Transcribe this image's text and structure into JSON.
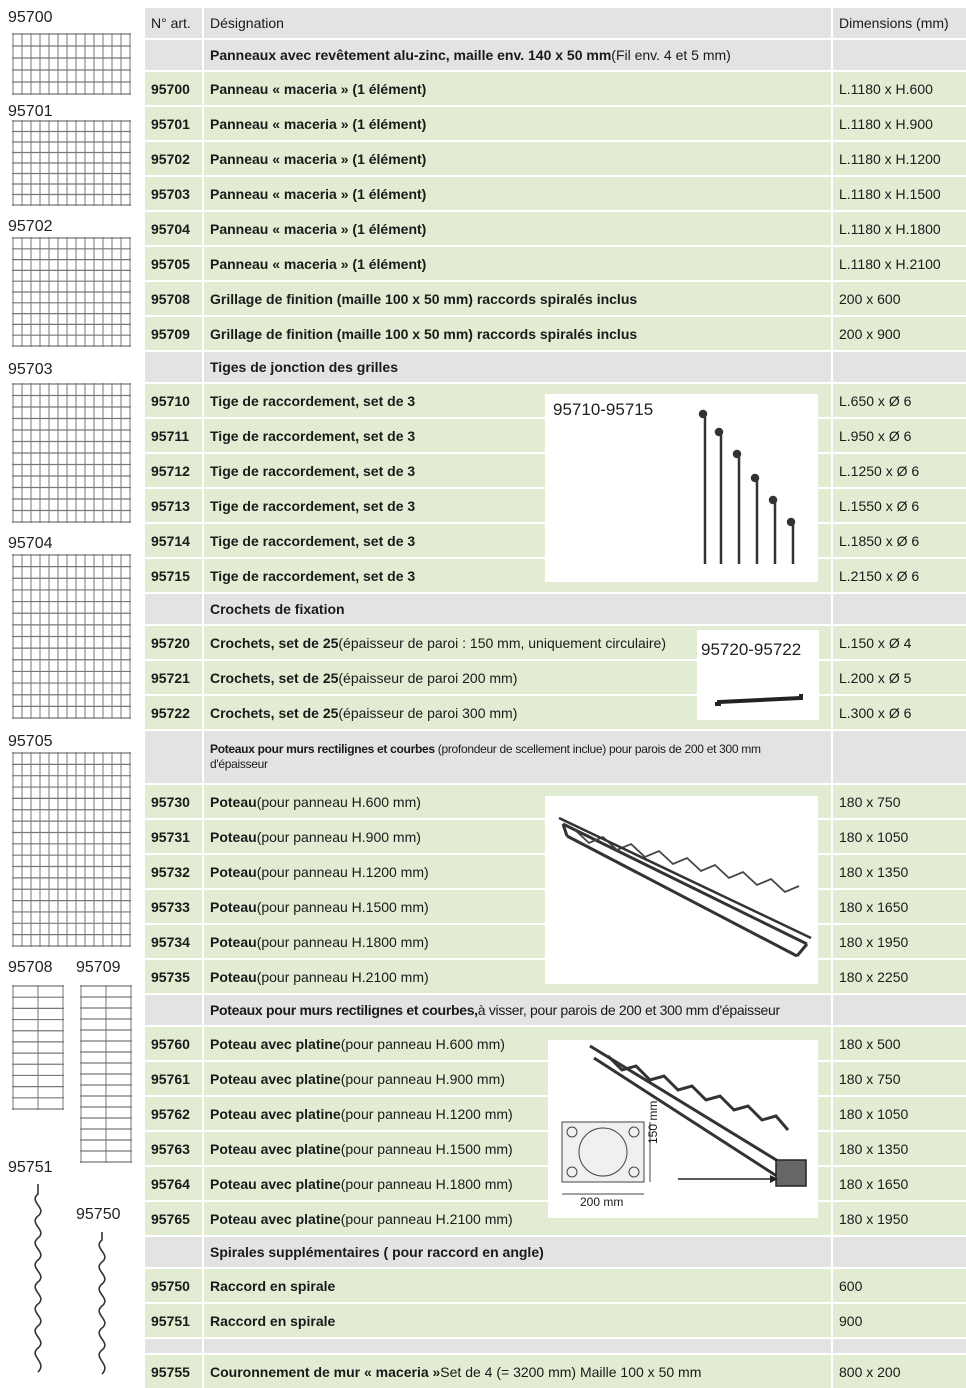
{
  "thumbs": {
    "t95700": "95700",
    "t95701": "95701",
    "t95702": "95702",
    "t95703": "95703",
    "t95704": "95704",
    "t95705": "95705",
    "t95708": "95708",
    "t95709": "95709",
    "t95751": "95751",
    "t95750": "95750"
  },
  "header": {
    "col_art": "N° art.",
    "col_desig": "Désignation",
    "col_dim": "Dimensions (mm)"
  },
  "sections": {
    "s1_bold": "Panneaux avec revêtement alu-zinc, maille env. 140 x 50 mm",
    "s1_rest": " (Fil env. 4 et 5 mm)",
    "s2": "Tiges de jonction des grilles",
    "s3": "Crochets de fixation",
    "s4_bold": "Poteaux pour murs rectilignes et courbes",
    "s4_rest": " (profondeur de scellement inclue) pour parois de 200 et 300 mm d'épaisseur",
    "s5_bold": "Poteaux pour murs rectilignes et courbes,",
    "s5_rest": " à visser, pour parois de 200 et 300 mm d'épaisseur",
    "s6": "Spirales supplémentaires ( pour raccord en angle)"
  },
  "rows": {
    "r95700": {
      "art": "95700",
      "bold": "Panneau « maceria » (1 élément)",
      "rest": "",
      "dim": "L.1180 x H.600"
    },
    "r95701": {
      "art": "95701",
      "bold": "Panneau « maceria » (1 élément)",
      "rest": "",
      "dim": "L.1180 x H.900"
    },
    "r95702": {
      "art": "95702",
      "bold": "Panneau « maceria » (1 élément)",
      "rest": "",
      "dim": "L.1180 x H.1200"
    },
    "r95703": {
      "art": "95703",
      "bold": "Panneau « maceria » (1 élément)",
      "rest": "",
      "dim": "L.1180 x H.1500"
    },
    "r95704": {
      "art": "95704",
      "bold": "Panneau « maceria » (1 élément)",
      "rest": "",
      "dim": "L.1180 x H.1800"
    },
    "r95705": {
      "art": "95705",
      "bold": "Panneau « maceria » (1 élément)",
      "rest": "",
      "dim": "L.1180 x H.2100"
    },
    "r95708": {
      "art": "95708",
      "bold": "Grillage de finition (maille 100 x 50 mm) raccords spiralés inclus",
      "rest": "",
      "dim": "200 x 600"
    },
    "r95709": {
      "art": "95709",
      "bold": "Grillage de finition (maille 100 x 50 mm) raccords spiralés inclus",
      "rest": "",
      "dim": "200 x 900"
    },
    "r95710": {
      "art": "95710",
      "bold": "Tige de raccordement, set de 3",
      "rest": "",
      "dim": "L.650 x Ø 6"
    },
    "r95711": {
      "art": "95711",
      "bold": "Tige de raccordement, set de 3",
      "rest": "",
      "dim": "L.950 x Ø 6"
    },
    "r95712": {
      "art": "95712",
      "bold": "Tige de raccordement, set de 3",
      "rest": "",
      "dim": "L.1250 x Ø 6"
    },
    "r95713": {
      "art": "95713",
      "bold": "Tige de raccordement, set de 3",
      "rest": "",
      "dim": "L.1550 x Ø 6"
    },
    "r95714": {
      "art": "95714",
      "bold": "Tige de raccordement, set de 3",
      "rest": "",
      "dim": "L.1850 x Ø 6"
    },
    "r95715": {
      "art": "95715",
      "bold": "Tige de raccordement, set de 3",
      "rest": "",
      "dim": "L.2150 x Ø 6"
    },
    "r95720": {
      "art": "95720",
      "bold": "Crochets, set de 25",
      "rest": " (épaisseur de paroi : 150 mm, uniquement circulaire)",
      "dim": "L.150 x Ø 4"
    },
    "r95721": {
      "art": "95721",
      "bold": "Crochets, set de 25",
      "rest": " (épaisseur de paroi 200 mm)",
      "dim": "L.200 x Ø 5"
    },
    "r95722": {
      "art": "95722",
      "bold": "Crochets, set de 25",
      "rest": " (épaisseur de paroi 300 mm)",
      "dim": "L.300 x Ø 6"
    },
    "r95730": {
      "art": "95730",
      "bold": "Poteau",
      "rest": " (pour panneau H.600 mm)",
      "dim": "180 x 750"
    },
    "r95731": {
      "art": "95731",
      "bold": "Poteau",
      "rest": " (pour panneau H.900 mm)",
      "dim": "180 x 1050"
    },
    "r95732": {
      "art": "95732",
      "bold": "Poteau",
      "rest": " (pour panneau H.1200 mm)",
      "dim": "180 x 1350"
    },
    "r95733": {
      "art": "95733",
      "bold": "Poteau",
      "rest": " (pour panneau H.1500 mm)",
      "dim": "180 x 1650"
    },
    "r95734": {
      "art": "95734",
      "bold": "Poteau",
      "rest": " (pour panneau H.1800 mm)",
      "dim": "180 x 1950"
    },
    "r95735": {
      "art": "95735",
      "bold": "Poteau",
      "rest": " (pour panneau H.2100 mm)",
      "dim": "180 x 2250"
    },
    "r95760": {
      "art": "95760",
      "bold": "Poteau avec platine",
      "rest": " (pour panneau H.600 mm)",
      "dim": "180 x 500"
    },
    "r95761": {
      "art": "95761",
      "bold": "Poteau avec platine",
      "rest": " (pour panneau H.900 mm)",
      "dim": "180 x 750"
    },
    "r95762": {
      "art": "95762",
      "bold": "Poteau avec platine",
      "rest": " (pour panneau H.1200 mm)",
      "dim": "180 x 1050"
    },
    "r95763": {
      "art": "95763",
      "bold": "Poteau avec platine",
      "rest": " (pour panneau H.1500 mm)",
      "dim": "180 x 1350"
    },
    "r95764": {
      "art": "95764",
      "bold": "Poteau avec platine",
      "rest": " (pour panneau H.1800 mm)",
      "dim": "180 x 1650"
    },
    "r95765": {
      "art": "95765",
      "bold": "Poteau avec platine",
      "rest": " (pour panneau H.2100 mm)",
      "dim": "180 x 1950"
    },
    "r95750": {
      "art": "95750",
      "bold": "Raccord en spirale",
      "rest": "",
      "dim": "600"
    },
    "r95751": {
      "art": "95751",
      "bold": "Raccord en spirale",
      "rest": "",
      "dim": "900"
    },
    "r95755": {
      "art": "95755",
      "bold": "Couronnement de mur « maceria »",
      "rest": " Set de 4 (= 3200 mm) Maille 100 x 50 mm",
      "dim": "800 x 200"
    }
  },
  "images": {
    "rods_label": "95710-95715",
    "hooks_label": "95720-95722",
    "plate_width": "200 mm",
    "plate_height": "150 mm"
  },
  "colors": {
    "row_green": "#e1ecd3",
    "row_grey": "#e3e3e3"
  }
}
